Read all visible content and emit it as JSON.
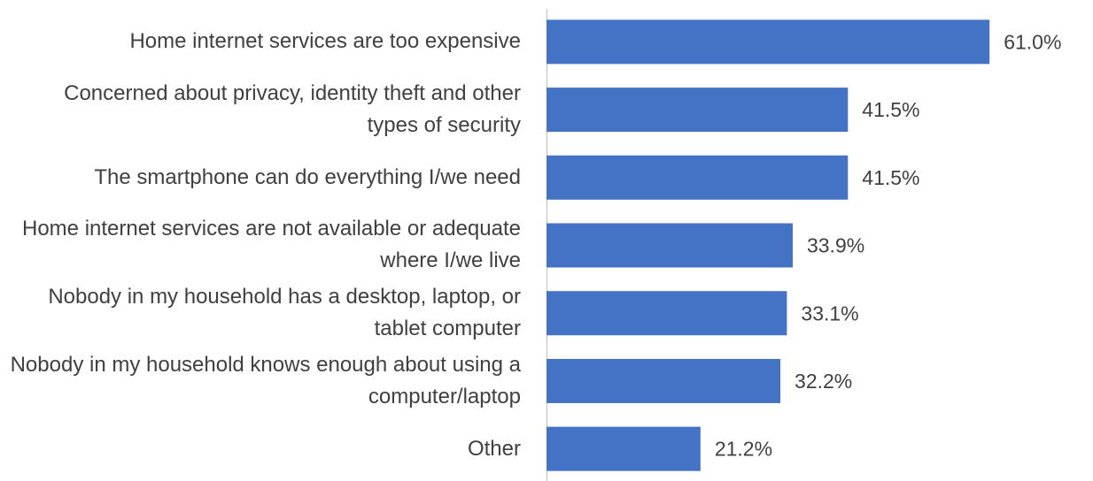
{
  "chart_data": {
    "type": "hbar",
    "categories": [
      "Home internet services are too expensive",
      "Concerned about privacy, identity theft and other types of security",
      "The smartphone can do everything I/we need",
      "Home internet services are not available or adequate where I/we live",
      "Nobody in my household has a desktop, laptop, or tablet computer",
      "Nobody in my household knows enough about using a computer/laptop",
      "Other"
    ],
    "values": [
      61.0,
      41.5,
      41.5,
      33.9,
      33.1,
      32.2,
      21.2
    ],
    "value_labels": [
      "61.0%",
      "41.5%",
      "41.5%",
      "33.9%",
      "33.1%",
      "32.2%",
      "21.2%"
    ],
    "color": "#4472c4",
    "xlim": [
      0,
      75
    ]
  }
}
